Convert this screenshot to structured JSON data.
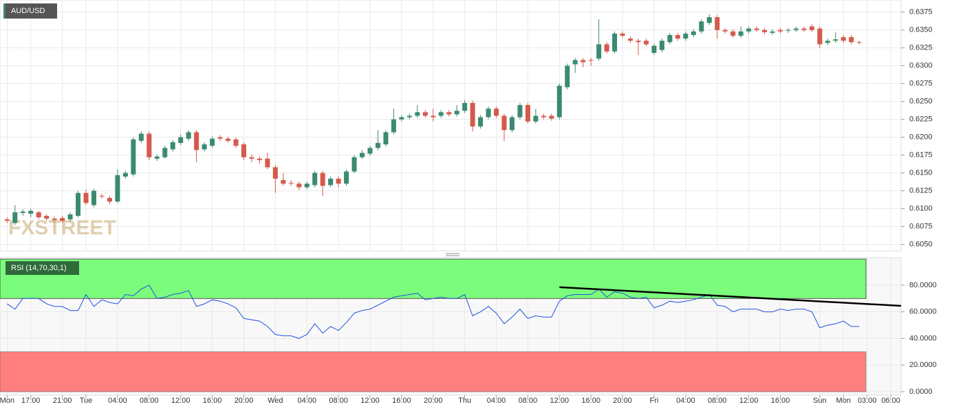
{
  "chart_data": [
    {
      "type": "candlestick",
      "title": "AUD/USD",
      "watermark": "FXSTREET",
      "up_color": "#3b8a71",
      "down_color": "#d6594b",
      "open": [
        0.6085,
        0.608,
        0.6094,
        0.6093,
        0.6095,
        0.609,
        0.6086,
        0.6087,
        0.6085,
        0.609,
        0.6122,
        0.6105,
        0.6118,
        0.6115,
        0.611,
        0.6145,
        0.6148,
        0.6195,
        0.6205,
        0.617,
        0.6172,
        0.6183,
        0.6192,
        0.6198,
        0.6207,
        0.6183,
        0.6188,
        0.62,
        0.6198,
        0.6197,
        0.619,
        0.6172,
        0.617,
        0.617,
        0.6158,
        0.614,
        0.6136,
        0.6135,
        0.613,
        0.6133,
        0.615,
        0.6133,
        0.6142,
        0.6135,
        0.6152,
        0.6172,
        0.6177,
        0.6185,
        0.619,
        0.6207,
        0.6225,
        0.6228,
        0.623,
        0.6235,
        0.623,
        0.623,
        0.6235,
        0.6232,
        0.6237,
        0.6248,
        0.6215,
        0.6228,
        0.624,
        0.623,
        0.621,
        0.6228,
        0.6245,
        0.6222,
        0.623,
        0.623,
        0.6228,
        0.627,
        0.6302,
        0.6308,
        0.6308,
        0.631,
        0.633,
        0.632,
        0.6345,
        0.6338,
        0.6335,
        0.6335,
        0.6318,
        0.6322,
        0.6333,
        0.6343,
        0.6338,
        0.6343,
        0.6348,
        0.636,
        0.6368,
        0.635,
        0.6348,
        0.6342,
        0.6348,
        0.6352,
        0.635,
        0.6346,
        0.635,
        0.6349,
        0.635,
        0.6352,
        0.6355,
        0.6352,
        0.6332,
        0.6335,
        0.634,
        0.634,
        0.6333
      ],
      "high": [
        0.6088,
        0.6105,
        0.6099,
        0.61,
        0.6097,
        0.6092,
        0.6089,
        0.609,
        0.6095,
        0.6125,
        0.6127,
        0.6128,
        0.6121,
        0.6118,
        0.6155,
        0.6153,
        0.62,
        0.6208,
        0.6208,
        0.6176,
        0.6188,
        0.6196,
        0.6204,
        0.621,
        0.621,
        0.6193,
        0.6201,
        0.6203,
        0.6201,
        0.62,
        0.6193,
        0.6176,
        0.6173,
        0.6178,
        0.6161,
        0.615,
        0.614,
        0.6138,
        0.6138,
        0.6153,
        0.6153,
        0.6145,
        0.6145,
        0.6155,
        0.6175,
        0.6182,
        0.6188,
        0.621,
        0.621,
        0.624,
        0.6231,
        0.6233,
        0.6245,
        0.6238,
        0.624,
        0.6238,
        0.6238,
        0.6245,
        0.6252,
        0.6251,
        0.6231,
        0.6243,
        0.6243,
        0.6233,
        0.6231,
        0.6248,
        0.6248,
        0.624,
        0.6233,
        0.6233,
        0.6275,
        0.6303,
        0.6311,
        0.6311,
        0.6311,
        0.6365,
        0.6333,
        0.6348,
        0.6348,
        0.6341,
        0.6338,
        0.6338,
        0.6331,
        0.6338,
        0.6346,
        0.6346,
        0.6348,
        0.6351,
        0.6365,
        0.6372,
        0.6371,
        0.6353,
        0.6351,
        0.6355,
        0.6355,
        0.6355,
        0.6353,
        0.6351,
        0.6353,
        0.6353,
        0.6355,
        0.6355,
        0.6358,
        0.6355,
        0.6338,
        0.6347,
        0.6343,
        0.6343,
        0.6335
      ],
      "low": [
        0.608,
        0.6077,
        0.609,
        0.6088,
        0.6085,
        0.6083,
        0.608,
        0.608,
        0.6082,
        0.6088,
        0.6105,
        0.6102,
        0.6114,
        0.6106,
        0.6108,
        0.6142,
        0.6145,
        0.6192,
        0.6168,
        0.6167,
        0.617,
        0.618,
        0.6189,
        0.6195,
        0.6165,
        0.618,
        0.6185,
        0.6195,
        0.6192,
        0.6185,
        0.6168,
        0.6165,
        0.6163,
        0.6155,
        0.6122,
        0.6132,
        0.6132,
        0.6126,
        0.6127,
        0.613,
        0.6118,
        0.613,
        0.613,
        0.6132,
        0.615,
        0.617,
        0.6174,
        0.6182,
        0.6187,
        0.6204,
        0.6222,
        0.6225,
        0.6227,
        0.6227,
        0.6222,
        0.6227,
        0.6229,
        0.6229,
        0.6234,
        0.6208,
        0.6212,
        0.6225,
        0.6227,
        0.6195,
        0.6207,
        0.6225,
        0.6219,
        0.6219,
        0.6225,
        0.6223,
        0.6225,
        0.6267,
        0.629,
        0.6298,
        0.63,
        0.6307,
        0.6317,
        0.6317,
        0.6339,
        0.6332,
        0.6315,
        0.6327,
        0.6315,
        0.6319,
        0.633,
        0.6335,
        0.6335,
        0.634,
        0.6345,
        0.6357,
        0.6338,
        0.6345,
        0.6339,
        0.6339,
        0.6345,
        0.6347,
        0.6344,
        0.6343,
        0.6345,
        0.6346,
        0.6347,
        0.6347,
        0.6347,
        0.6325,
        0.6329,
        0.6332,
        0.6332,
        0.633,
        0.633
      ],
      "close": [
        0.6083,
        0.6095,
        0.6096,
        0.6097,
        0.6088,
        0.6086,
        0.6084,
        0.6083,
        0.6092,
        0.6122,
        0.6108,
        0.6125,
        0.6117,
        0.611,
        0.6147,
        0.615,
        0.6197,
        0.6205,
        0.6172,
        0.6173,
        0.6185,
        0.6193,
        0.62,
        0.6207,
        0.6182,
        0.619,
        0.6198,
        0.6198,
        0.6195,
        0.6188,
        0.6172,
        0.617,
        0.6168,
        0.6158,
        0.6142,
        0.6135,
        0.6135,
        0.613,
        0.6135,
        0.615,
        0.6132,
        0.6142,
        0.6135,
        0.6152,
        0.6172,
        0.6178,
        0.6185,
        0.6192,
        0.6207,
        0.6225,
        0.6228,
        0.623,
        0.6235,
        0.623,
        0.6228,
        0.6235,
        0.6232,
        0.6237,
        0.6248,
        0.6215,
        0.6228,
        0.624,
        0.623,
        0.621,
        0.6228,
        0.6245,
        0.6222,
        0.623,
        0.6228,
        0.6226,
        0.6272,
        0.63,
        0.6308,
        0.6305,
        0.6307,
        0.633,
        0.632,
        0.6345,
        0.6342,
        0.6335,
        0.6333,
        0.633,
        0.6328,
        0.6335,
        0.6343,
        0.6338,
        0.6345,
        0.6348,
        0.6362,
        0.6368,
        0.635,
        0.6348,
        0.6342,
        0.6348,
        0.6352,
        0.635,
        0.6347,
        0.6348,
        0.6348,
        0.635,
        0.6352,
        0.635,
        0.635,
        0.633,
        0.6335,
        0.6337,
        0.6335,
        0.6333,
        0.6332
      ],
      "xlim": [
        -0.9,
        113.3
      ],
      "ylim": [
        0.6041,
        0.6392
      ],
      "yticks": [
        0.6375,
        {
          "value": 0.635,
          "label": "0.6350"
        },
        0.6325,
        {
          "value": 0.63,
          "label": "0.6300"
        },
        0.6275,
        {
          "value": 0.625,
          "label": "0.6250"
        },
        0.6225,
        {
          "value": 0.62,
          "label": "0.6200"
        },
        0.6175,
        {
          "value": 0.615,
          "label": "0.6150"
        },
        0.6125,
        {
          "value": 0.61,
          "label": "0.6100"
        },
        0.6075,
        {
          "value": 0.605,
          "label": "0.6050"
        }
      ],
      "grid": true
    },
    {
      "type": "line",
      "title": "RSI (14,70,30,1)",
      "color": "#2050e0",
      "values": [
        66,
        62,
        70,
        70,
        70,
        66,
        64,
        64,
        61,
        61,
        73,
        64,
        69,
        67,
        66,
        73,
        72,
        77,
        80,
        70,
        71,
        73,
        74,
        76,
        64,
        66,
        69,
        68,
        66,
        63,
        55,
        54,
        53,
        49,
        43,
        42,
        42,
        40,
        43,
        51,
        44,
        49,
        46,
        52,
        59,
        61,
        62,
        65,
        68,
        71,
        72,
        73,
        74,
        69,
        70,
        71,
        70,
        70,
        73,
        57,
        60,
        64,
        59,
        51,
        56,
        62,
        55,
        57,
        56,
        56,
        68,
        72,
        73,
        73,
        73,
        77,
        71,
        75,
        74,
        71,
        70,
        71,
        63,
        65,
        68,
        67,
        68,
        69,
        71,
        73,
        65,
        64,
        60,
        62,
        62,
        62,
        60,
        60,
        62,
        61,
        62,
        62,
        60,
        48,
        50,
        51,
        53,
        49,
        49
      ],
      "overbought": 70,
      "oversold": 30,
      "overbought_color": "#7cfc7c",
      "oversold_color": "#ff7f7f",
      "trendline": {
        "x": [
          70,
          113.3
        ],
        "values": [
          78.5,
          64.5
        ],
        "color": "#000000"
      },
      "xlim": [
        -0.9,
        113.3
      ],
      "ylim": [
        -2.6,
        100.6
      ],
      "yticks": [
        {
          "value": 0,
          "label": "0.0000"
        },
        {
          "value": 20,
          "label": "20.0000"
        },
        {
          "value": 40,
          "label": "40.0000"
        },
        {
          "value": 60,
          "label": "60.0000"
        },
        {
          "value": 80,
          "label": "80.0000"
        }
      ],
      "xticks": [
        {
          "value": 0,
          "label": "Mon"
        },
        {
          "value": 3,
          "label": "17:00"
        },
        {
          "value": 7,
          "label": "21:00"
        },
        {
          "value": 10,
          "label": "Tue"
        },
        {
          "value": 14,
          "label": "04:00"
        },
        {
          "value": 18,
          "label": "08:00"
        },
        {
          "value": 22,
          "label": "12:00"
        },
        {
          "value": 26,
          "label": "16:00"
        },
        {
          "value": 30,
          "label": "20:00"
        },
        {
          "value": 34,
          "label": "Wed"
        },
        {
          "value": 38,
          "label": "04:00"
        },
        {
          "value": 42,
          "label": "08:00"
        },
        {
          "value": 46,
          "label": "12:00"
        },
        {
          "value": 50,
          "label": "16:00"
        },
        {
          "value": 54,
          "label": "20:00"
        },
        {
          "value": 58,
          "label": "Thu"
        },
        {
          "value": 62,
          "label": "04:00"
        },
        {
          "value": 66,
          "label": "08:00"
        },
        {
          "value": 70,
          "label": "12:00"
        },
        {
          "value": 74,
          "label": "16:00"
        },
        {
          "value": 78,
          "label": "20:00"
        },
        {
          "value": 82,
          "label": "Fri"
        },
        {
          "value": 86,
          "label": "04:00"
        },
        {
          "value": 90,
          "label": "08:00"
        },
        {
          "value": 94,
          "label": "12:00"
        },
        {
          "value": 98,
          "label": "16:00"
        },
        {
          "value": 103,
          "label": "Sun"
        },
        {
          "value": 106,
          "label": "Mon"
        },
        {
          "value": 109,
          "label": "03:00"
        },
        {
          "value": 112,
          "label": "06:00"
        }
      ],
      "grid": true
    }
  ]
}
